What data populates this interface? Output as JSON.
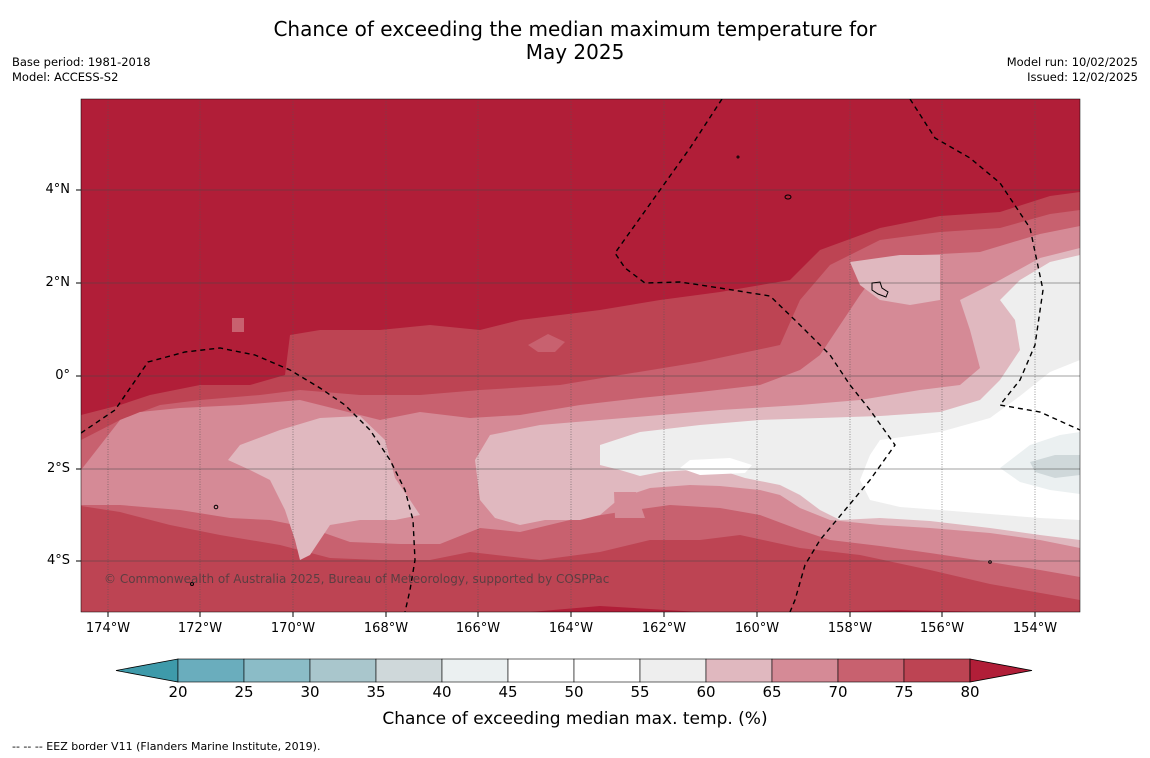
{
  "title_line1": "Chance of exceeding the median maximum temperature for",
  "title_line2": "May 2025",
  "meta_left": [
    "Base period: 1981-2018",
    "Model: ACCESS-S2"
  ],
  "meta_right": [
    "Model run: 10/02/2025",
    "Issued: 12/02/2025"
  ],
  "copyright": "© Commonwealth of Australia 2025, Bureau of Meteorology, supported by COSPPac",
  "footnote": "--  --  -- EEZ border V11 (Flanders Marine Institute, 2019).",
  "lat_ticks": [
    "4°N",
    "2°N",
    "0°",
    "2°S",
    "4°S"
  ],
  "lon_ticks": [
    "174°W",
    "172°W",
    "170°W",
    "168°W",
    "166°W",
    "164°W",
    "162°W",
    "160°W",
    "158°W",
    "156°W",
    "154°W"
  ],
  "colorbar": {
    "label": "Chance of exceeding median max. temp. (%)",
    "ticks": [
      "20",
      "25",
      "30",
      "35",
      "40",
      "45",
      "50",
      "55",
      "60",
      "65",
      "70",
      "75",
      "80"
    ],
    "colors": [
      "#3e9aaa",
      "#6aadbd",
      "#8bbcc7",
      "#a9c6cc",
      "#cfd8da",
      "#ebf0f1",
      "#ffffff",
      "#ffffff",
      "#eeeeee",
      "#e0b8bf",
      "#d58a96",
      "#c8616f",
      "#bd4453",
      "#b11e38"
    ]
  }
}
